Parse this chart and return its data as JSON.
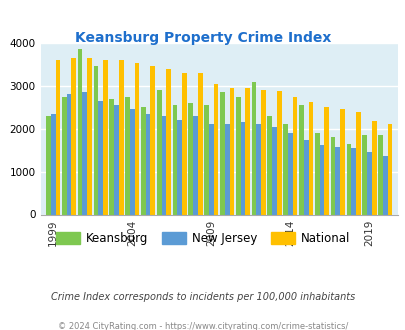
{
  "title": "Keansburg Property Crime Index",
  "years": [
    1999,
    2000,
    2001,
    2002,
    2003,
    2004,
    2005,
    2006,
    2007,
    2008,
    2009,
    2010,
    2011,
    2012,
    2013,
    2014,
    2015,
    2016,
    2017,
    2018,
    2019,
    2020
  ],
  "keansburg": [
    2300,
    2750,
    3850,
    3450,
    2700,
    2750,
    2500,
    2900,
    2550,
    2600,
    2550,
    2850,
    2750,
    3100,
    2300,
    2100,
    2550,
    1900,
    1800,
    1650,
    1850,
    1850
  ],
  "new_jersey": [
    2350,
    2800,
    2850,
    2650,
    2550,
    2450,
    2350,
    2300,
    2200,
    2300,
    2100,
    2100,
    2150,
    2100,
    2050,
    1900,
    1730,
    1620,
    1570,
    1550,
    1450,
    1360
  ],
  "national": [
    3600,
    3650,
    3650,
    3600,
    3600,
    3520,
    3450,
    3380,
    3300,
    3300,
    3050,
    2950,
    2950,
    2900,
    2880,
    2740,
    2620,
    2510,
    2460,
    2390,
    2190,
    2100
  ],
  "keansburg_color": "#7ec850",
  "nj_color": "#5b9bd5",
  "national_color": "#ffc000",
  "bg_color": "#deeef5",
  "title_color": "#1e6fcc",
  "ylabel_max": 4000,
  "note": "Crime Index corresponds to incidents per 100,000 inhabitants",
  "copyright": "© 2024 CityRating.com - https://www.cityrating.com/crime-statistics/"
}
